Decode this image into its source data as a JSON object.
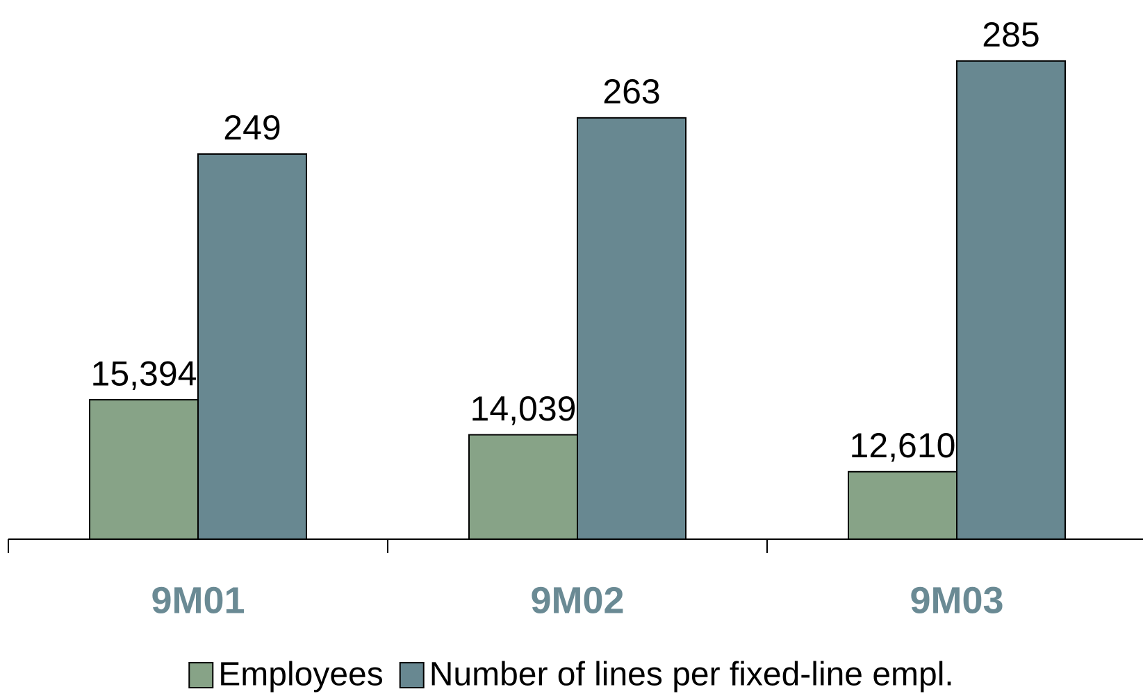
{
  "chart_data": {
    "type": "bar",
    "categories": [
      "9M01",
      "9M02",
      "9M03"
    ],
    "series": [
      {
        "name": "Employees",
        "color": "#87a387",
        "values": [
          15394,
          14039,
          12610
        ],
        "value_labels": [
          "15,394",
          "14,039",
          "12,610"
        ]
      },
      {
        "name": "Number of lines per fixed-line empl.",
        "color": "#688891",
        "values": [
          249,
          263,
          285
        ],
        "axis": "y2"
      }
    ],
    "ylim": [
      10000,
      30000
    ],
    "y2lim": [
      100,
      300
    ],
    "legend": "bottom"
  }
}
